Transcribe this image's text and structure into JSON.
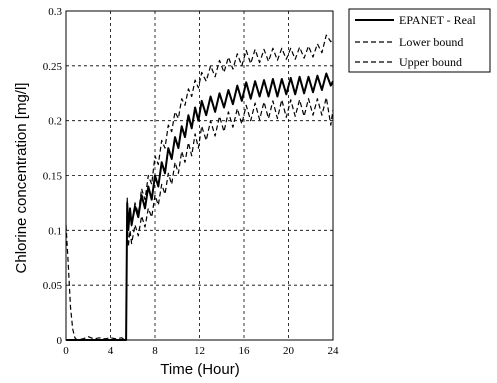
{
  "chart_data": {
    "type": "line",
    "title": "",
    "xlabel": "Time (Hour)",
    "ylabel": "Chlorine concentration [mg/l]",
    "xlim": [
      0,
      24
    ],
    "ylim": [
      0,
      0.3
    ],
    "xticks": [
      "0",
      "4",
      "8",
      "12",
      "16",
      "20",
      "24"
    ],
    "yticks": [
      "0",
      "0.05",
      "0.1",
      "0.15",
      "0.2",
      "0.25",
      "0.3"
    ],
    "grid": true,
    "legend_position": "outside-top-right",
    "series": [
      {
        "name": "EPANET - Real",
        "style": "solid",
        "color": "#000000",
        "x": [
          0,
          5.3,
          5.4,
          5.5,
          5.6,
          5.75,
          5.9,
          6.2,
          6.5,
          6.8,
          7.1,
          7.4,
          7.7,
          8.0,
          8.3,
          8.6,
          8.9,
          9.2,
          9.5,
          9.8,
          10.1,
          10.4,
          10.7,
          11.0,
          11.3,
          11.6,
          11.9,
          12.2,
          12.6,
          13.0,
          13.4,
          13.8,
          14.2,
          14.6,
          15.0,
          15.4,
          15.8,
          16.2,
          16.6,
          17.0,
          17.4,
          17.8,
          18.2,
          18.6,
          19.0,
          19.4,
          19.8,
          20.2,
          20.6,
          21.0,
          21.4,
          21.8,
          22.2,
          22.6,
          23.0,
          23.4,
          23.8,
          24.0
        ],
        "y": [
          0,
          0,
          0.0,
          0.125,
          0.1,
          0.12,
          0.105,
          0.122,
          0.112,
          0.132,
          0.12,
          0.14,
          0.128,
          0.15,
          0.14,
          0.162,
          0.152,
          0.175,
          0.165,
          0.185,
          0.175,
          0.195,
          0.185,
          0.205,
          0.193,
          0.212,
          0.2,
          0.218,
          0.205,
          0.222,
          0.208,
          0.225,
          0.212,
          0.228,
          0.215,
          0.232,
          0.218,
          0.235,
          0.22,
          0.236,
          0.222,
          0.237,
          0.222,
          0.238,
          0.222,
          0.238,
          0.224,
          0.239,
          0.224,
          0.24,
          0.225,
          0.24,
          0.226,
          0.241,
          0.228,
          0.243,
          0.232,
          0.236
        ]
      },
      {
        "name": "Lower bound",
        "style": "dashed",
        "color": "#000000",
        "x": [
          0,
          0.2,
          0.4,
          0.6,
          0.8,
          1.0,
          1.5,
          2.0,
          2.5,
          3.0,
          3.5,
          4.0,
          4.5,
          5.0,
          5.3,
          5.4,
          5.5,
          5.6,
          5.75,
          5.9,
          6.2,
          6.5,
          6.8,
          7.1,
          7.4,
          7.7,
          8.0,
          8.3,
          8.6,
          8.9,
          9.2,
          9.5,
          9.8,
          10.1,
          10.4,
          10.7,
          11.0,
          11.3,
          11.6,
          11.9,
          12.2,
          12.6,
          13.0,
          13.4,
          13.8,
          14.2,
          14.6,
          15.0,
          15.4,
          15.8,
          16.2,
          16.6,
          17.0,
          17.4,
          17.8,
          18.2,
          18.6,
          19.0,
          19.4,
          19.8,
          20.2,
          20.6,
          21.0,
          21.4,
          21.8,
          22.2,
          22.6,
          23.0,
          23.4,
          23.8,
          24.0
        ],
        "y": [
          0.105,
          0.07,
          0.03,
          0.01,
          0.002,
          0,
          0.001,
          0.003,
          0.001,
          0.002,
          0.001,
          0.002,
          0.001,
          0.002,
          0.0,
          0.0,
          0.115,
          0.085,
          0.1,
          0.088,
          0.105,
          0.095,
          0.113,
          0.103,
          0.12,
          0.112,
          0.132,
          0.123,
          0.142,
          0.133,
          0.152,
          0.142,
          0.162,
          0.152,
          0.172,
          0.162,
          0.18,
          0.168,
          0.188,
          0.175,
          0.195,
          0.182,
          0.2,
          0.186,
          0.204,
          0.19,
          0.208,
          0.194,
          0.211,
          0.197,
          0.214,
          0.2,
          0.216,
          0.201,
          0.217,
          0.202,
          0.218,
          0.202,
          0.219,
          0.203,
          0.219,
          0.204,
          0.219,
          0.204,
          0.22,
          0.205,
          0.22,
          0.205,
          0.221,
          0.196,
          0.21
        ]
      },
      {
        "name": "Upper bound",
        "style": "dashed",
        "color": "#000000",
        "x": [
          5.3,
          5.4,
          5.5,
          5.6,
          5.75,
          5.9,
          6.2,
          6.5,
          6.8,
          7.1,
          7.4,
          7.7,
          8.0,
          8.3,
          8.6,
          8.9,
          9.2,
          9.5,
          9.8,
          10.1,
          10.4,
          10.7,
          11.0,
          11.3,
          11.6,
          11.9,
          12.2,
          12.6,
          13.0,
          13.4,
          13.8,
          14.2,
          14.6,
          15.0,
          15.4,
          15.8,
          16.2,
          16.6,
          17.0,
          17.4,
          17.8,
          18.2,
          18.6,
          19.0,
          19.4,
          19.8,
          20.2,
          20.6,
          21.0,
          21.4,
          21.8,
          22.2,
          22.6,
          23.0,
          23.4,
          23.8,
          24.0
        ],
        "y": [
          0.0,
          0.0,
          0.13,
          0.1,
          0.118,
          0.104,
          0.125,
          0.115,
          0.138,
          0.128,
          0.15,
          0.142,
          0.168,
          0.16,
          0.182,
          0.175,
          0.196,
          0.19,
          0.208,
          0.202,
          0.22,
          0.214,
          0.229,
          0.222,
          0.237,
          0.23,
          0.244,
          0.236,
          0.25,
          0.24,
          0.255,
          0.244,
          0.258,
          0.247,
          0.261,
          0.25,
          0.264,
          0.252,
          0.265,
          0.253,
          0.265,
          0.254,
          0.266,
          0.255,
          0.266,
          0.256,
          0.266,
          0.256,
          0.267,
          0.257,
          0.268,
          0.258,
          0.27,
          0.262,
          0.278,
          0.272,
          0.275
        ]
      }
    ]
  }
}
